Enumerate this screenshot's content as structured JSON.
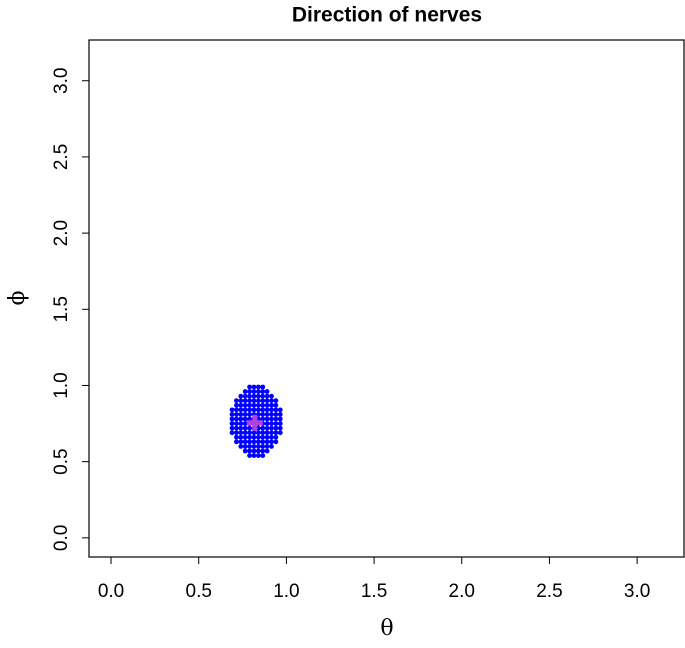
{
  "chart_data": {
    "type": "scatter",
    "title": "Direction of nerves",
    "x_label": "θ",
    "y_label": "ϕ",
    "xlim": [
      -0.1257,
      3.2673
    ],
    "ylim": [
      -0.1257,
      3.2673
    ],
    "xticks": [
      {
        "value": 0,
        "label": "0.0"
      },
      0.5,
      {
        "value": 1,
        "label": "1.0"
      },
      1.5,
      {
        "value": 2,
        "label": "2.0"
      },
      2.5,
      {
        "value": 3,
        "label": "3.0"
      }
    ],
    "yticks": [
      {
        "value": 0,
        "label": "0.0"
      },
      0.5,
      {
        "value": 1,
        "label": "1.0"
      },
      1.5,
      {
        "value": 2,
        "label": "2.0"
      },
      2.5,
      {
        "value": 3,
        "label": "3.0"
      }
    ],
    "series": [
      {
        "color": "#0000ff",
        "marker": "dot",
        "x": [
          0.79,
          0.815,
          0.84,
          0.865,
          0.765,
          0.79,
          0.815,
          0.84,
          0.865,
          0.89,
          0.74,
          0.765,
          0.79,
          0.815,
          0.84,
          0.865,
          0.89,
          0.915,
          0.715,
          0.74,
          0.765,
          0.79,
          0.815,
          0.84,
          0.865,
          0.89,
          0.915,
          0.94,
          0.715,
          0.74,
          0.765,
          0.79,
          0.815,
          0.84,
          0.865,
          0.89,
          0.915,
          0.94,
          0.69,
          0.715,
          0.74,
          0.765,
          0.79,
          0.815,
          0.84,
          0.865,
          0.89,
          0.915,
          0.94,
          0.965,
          0.69,
          0.715,
          0.74,
          0.765,
          0.79,
          0.815,
          0.84,
          0.865,
          0.89,
          0.915,
          0.94,
          0.965,
          0.69,
          0.715,
          0.74,
          0.765,
          0.79,
          0.815,
          0.84,
          0.865,
          0.89,
          0.915,
          0.94,
          0.965,
          0.69,
          0.715,
          0.74,
          0.765,
          0.79,
          0.815,
          0.84,
          0.865,
          0.89,
          0.915,
          0.94,
          0.965,
          0.69,
          0.715,
          0.74,
          0.765,
          0.79,
          0.815,
          0.84,
          0.865,
          0.89,
          0.915,
          0.94,
          0.965,
          0.69,
          0.715,
          0.74,
          0.765,
          0.79,
          0.815,
          0.84,
          0.865,
          0.89,
          0.915,
          0.94,
          0.965,
          0.715,
          0.74,
          0.765,
          0.79,
          0.815,
          0.84,
          0.865,
          0.89,
          0.915,
          0.94,
          0.715,
          0.74,
          0.765,
          0.79,
          0.815,
          0.84,
          0.865,
          0.89,
          0.915,
          0.94,
          0.74,
          0.765,
          0.79,
          0.815,
          0.84,
          0.865,
          0.89,
          0.915,
          0.765,
          0.79,
          0.815,
          0.84,
          0.865,
          0.89,
          0.79,
          0.815,
          0.84,
          0.865
        ],
        "y": [
          0.54,
          0.54,
          0.54,
          0.54,
          0.57,
          0.57,
          0.57,
          0.57,
          0.57,
          0.57,
          0.6,
          0.6,
          0.6,
          0.6,
          0.6,
          0.6,
          0.6,
          0.6,
          0.63,
          0.63,
          0.63,
          0.63,
          0.63,
          0.63,
          0.63,
          0.63,
          0.63,
          0.63,
          0.66,
          0.66,
          0.66,
          0.66,
          0.66,
          0.66,
          0.66,
          0.66,
          0.66,
          0.66,
          0.69,
          0.69,
          0.69,
          0.69,
          0.69,
          0.69,
          0.69,
          0.69,
          0.69,
          0.69,
          0.69,
          0.69,
          0.72,
          0.72,
          0.72,
          0.72,
          0.72,
          0.72,
          0.72,
          0.72,
          0.72,
          0.72,
          0.72,
          0.72,
          0.75,
          0.75,
          0.75,
          0.75,
          0.75,
          0.75,
          0.75,
          0.75,
          0.75,
          0.75,
          0.75,
          0.75,
          0.78,
          0.78,
          0.78,
          0.78,
          0.78,
          0.78,
          0.78,
          0.78,
          0.78,
          0.78,
          0.78,
          0.78,
          0.81,
          0.81,
          0.81,
          0.81,
          0.81,
          0.81,
          0.81,
          0.81,
          0.81,
          0.81,
          0.81,
          0.81,
          0.84,
          0.84,
          0.84,
          0.84,
          0.84,
          0.84,
          0.84,
          0.84,
          0.84,
          0.84,
          0.84,
          0.84,
          0.87,
          0.87,
          0.87,
          0.87,
          0.87,
          0.87,
          0.87,
          0.87,
          0.87,
          0.87,
          0.9,
          0.9,
          0.9,
          0.9,
          0.9,
          0.9,
          0.9,
          0.9,
          0.9,
          0.9,
          0.93,
          0.93,
          0.93,
          0.93,
          0.93,
          0.93,
          0.93,
          0.93,
          0.96,
          0.96,
          0.96,
          0.96,
          0.96,
          0.96,
          0.99,
          0.99,
          0.99,
          0.99
        ]
      },
      {
        "color": "#b040e0",
        "marker": "plus",
        "x": [
          0.82
        ],
        "y": [
          0.755
        ]
      }
    ]
  }
}
